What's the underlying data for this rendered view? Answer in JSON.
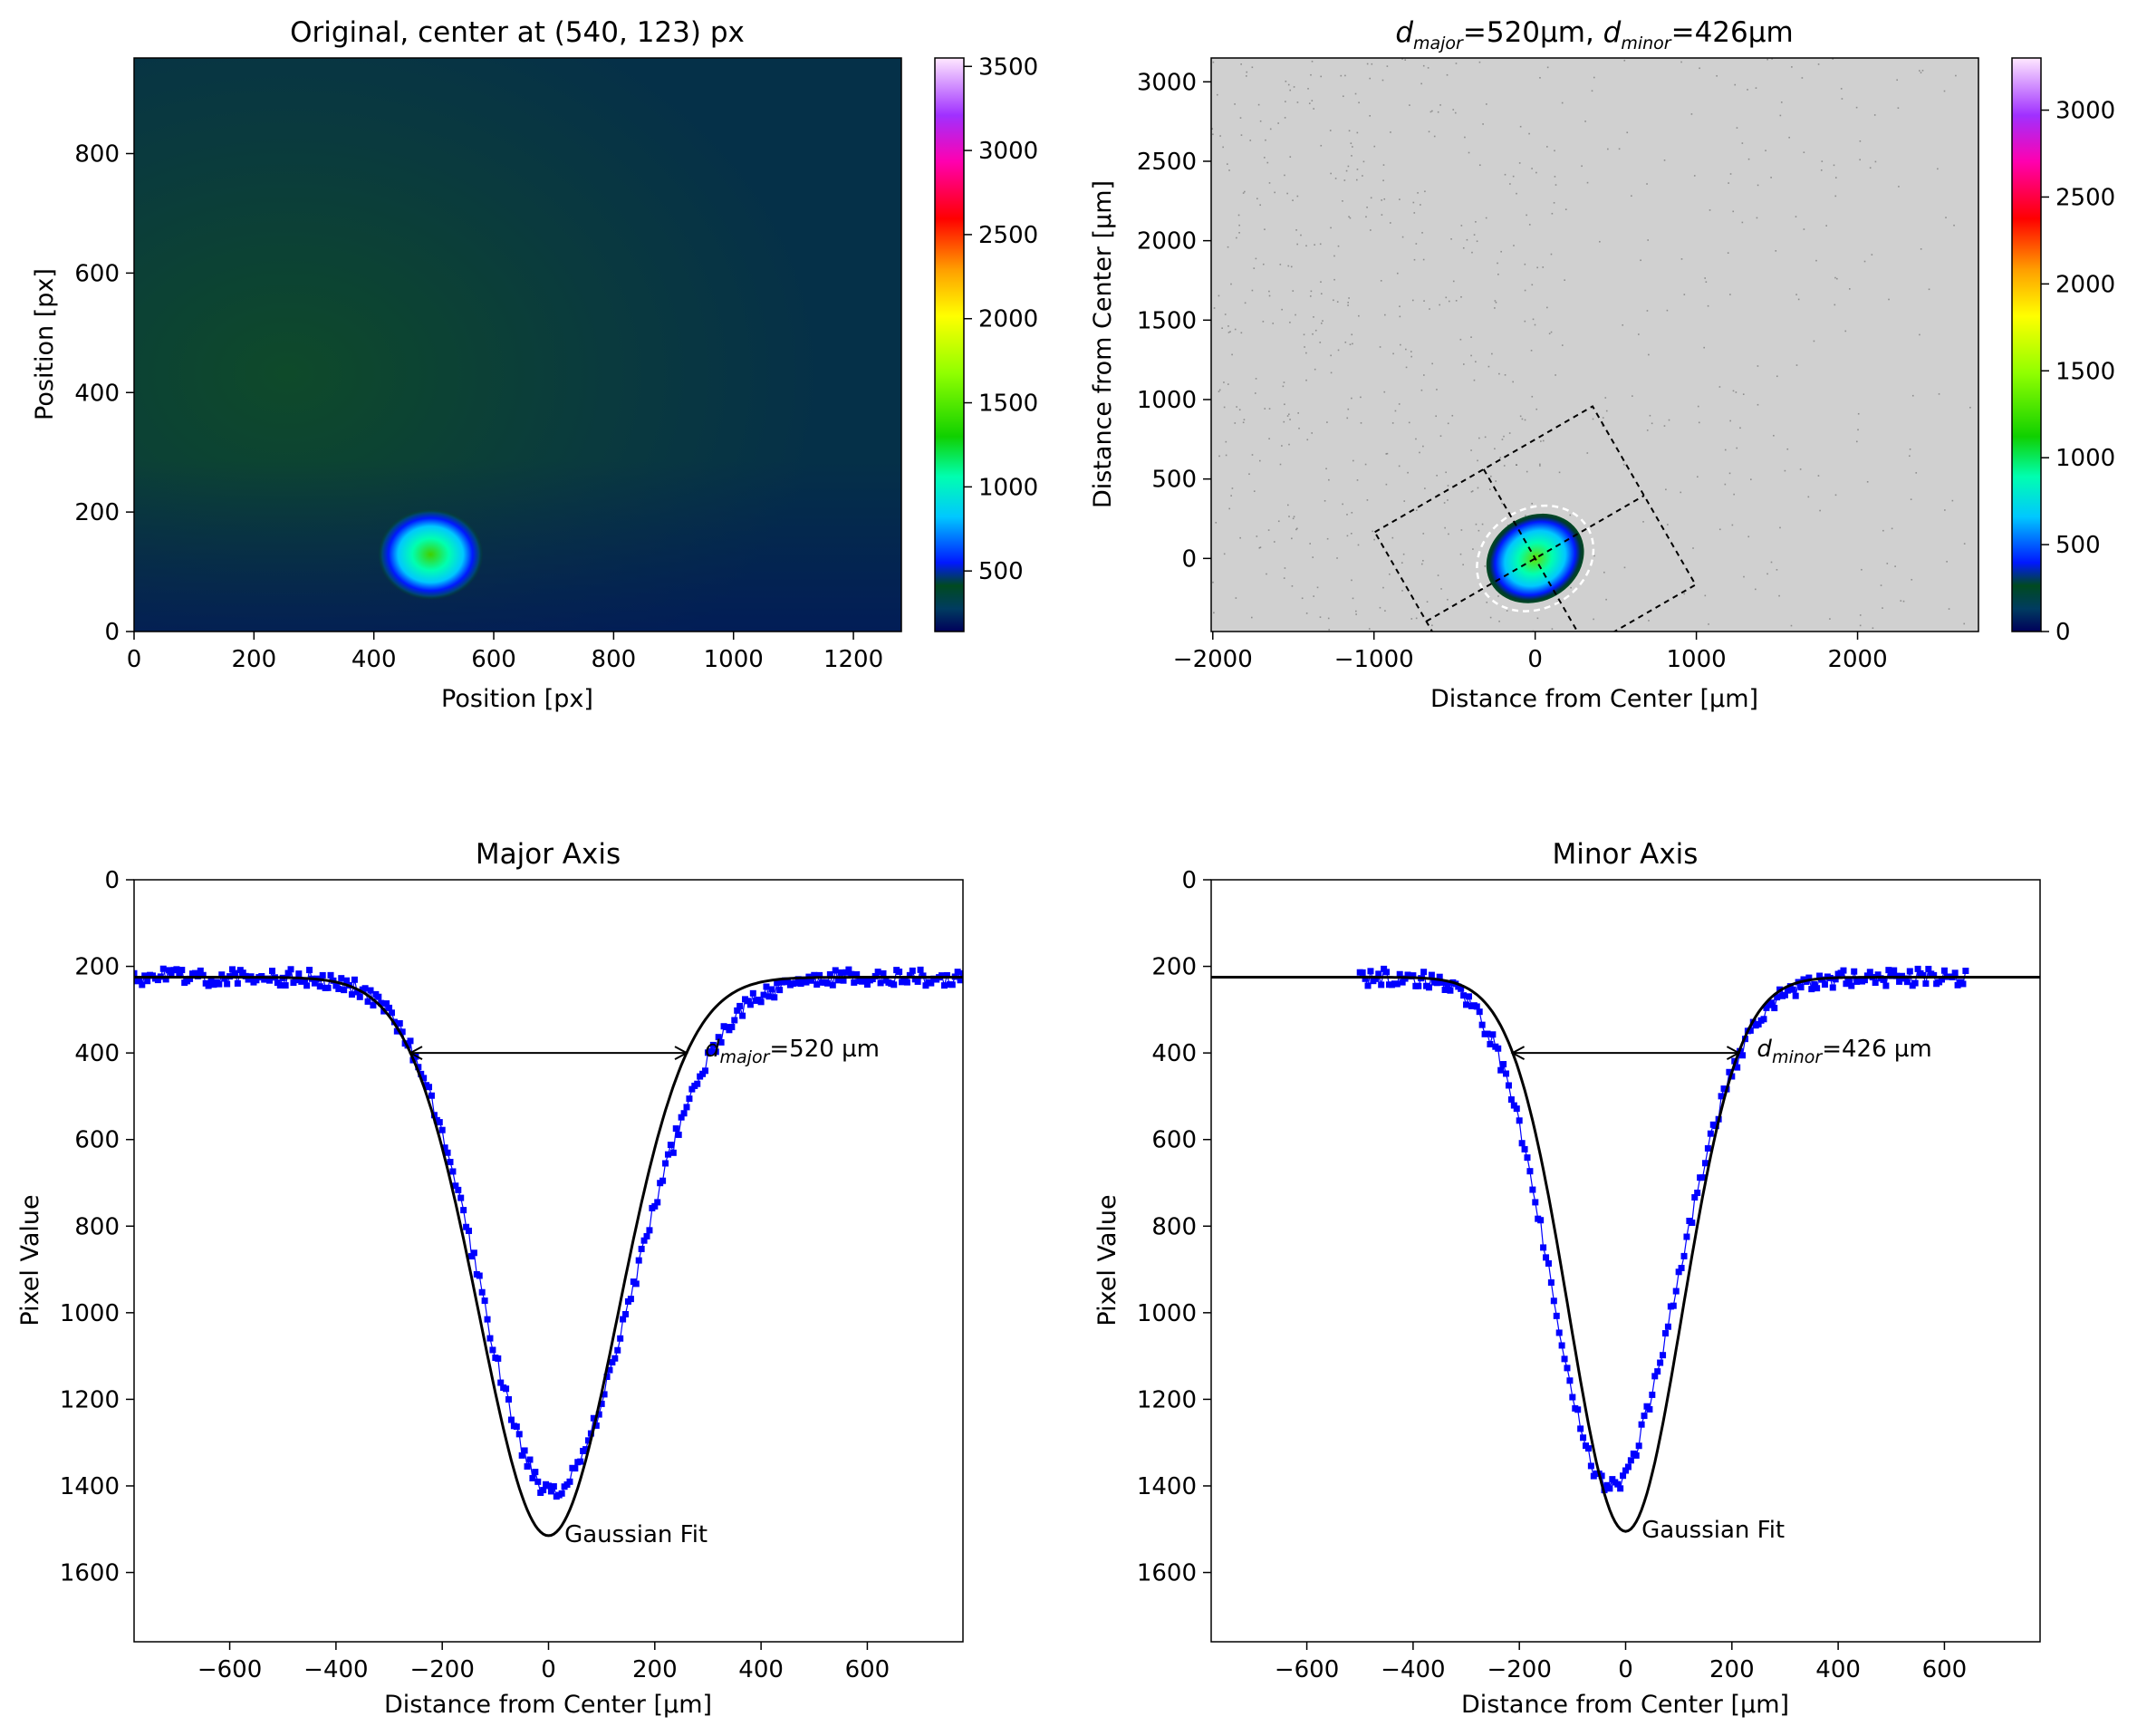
{
  "chart_data": [
    {
      "panel": "original",
      "type": "heatmap",
      "title": "Original, center at (540, 123) px",
      "xlabel": "Position [px]",
      "ylabel": "Position [px]",
      "xlim": [
        0,
        1280
      ],
      "ylim": [
        960,
        0
      ],
      "xticks": [
        0,
        200,
        400,
        600,
        800,
        1000,
        1200
      ],
      "yticks": [
        0,
        200,
        400,
        600,
        800
      ],
      "beam_center": [
        540,
        123
      ],
      "colorbar": {
        "min": 140,
        "max": 3550,
        "ticks": [
          500,
          1000,
          1500,
          2000,
          2500,
          3000,
          3500
        ]
      },
      "colormap": "gist_ncar",
      "background_color": "#0c3a3c"
    },
    {
      "panel": "centered",
      "type": "heatmap",
      "title_prefix": "d",
      "title_sub1": "major",
      "title_mid": "=520µm, ",
      "title_sub2": "minor",
      "title_suffix": "=426µm",
      "xlabel": "Distance from Center [µm]",
      "ylabel": "Distance from Center [µm]",
      "xlim": [
        -2010,
        2750
      ],
      "ylim": [
        3150,
        -460
      ],
      "xticks": [
        -2000,
        -1000,
        0,
        1000,
        2000
      ],
      "xtick_labels": [
        "−2000",
        "−1000",
        "0",
        "1000",
        "2000"
      ],
      "yticks": [
        0,
        500,
        1000,
        1500,
        2000,
        2500,
        3000
      ],
      "colorbar": {
        "min": 0,
        "max": 3300,
        "ticks": [
          0,
          500,
          1000,
          1500,
          2000,
          2500,
          3000
        ]
      },
      "background_color": "#d0d0d0",
      "rotation_deg": -30,
      "ellipse_diameters": [
        520,
        426
      ],
      "integration_rectangle": [
        1560,
        1278
      ]
    },
    {
      "panel": "major",
      "type": "line",
      "title": "Major Axis",
      "xlabel": "Distance from Center [µm]",
      "ylabel": "Pixel Value",
      "xlim": [
        -780,
        780
      ],
      "ylim": [
        0,
        1760
      ],
      "xticks": [
        -600,
        -400,
        -200,
        0,
        200,
        400,
        600
      ],
      "xtick_labels": [
        "−600",
        "−400",
        "−200",
        "0",
        "200",
        "400",
        "600"
      ],
      "yticks": [
        0,
        200,
        400,
        600,
        800,
        1000,
        1200,
        1400,
        1600
      ],
      "fit": {
        "name": "Gaussian Fit",
        "amplitude": 1290,
        "baseline": 225,
        "diameter": 520
      },
      "data_range": [
        -780,
        780
      ],
      "annotation_prefix": "d",
      "annotation_sub": "major",
      "annotation_suffix": "=520 µm",
      "arrow": {
        "x1": -260,
        "x2": 260,
        "y": 400
      },
      "series_color": "#0000ff"
    },
    {
      "panel": "minor",
      "type": "line",
      "title": "Minor Axis",
      "xlabel": "Distance from Center [µm]",
      "ylabel": "Pixel Value",
      "xlim": [
        -780,
        780
      ],
      "ylim": [
        0,
        1760
      ],
      "xticks": [
        -600,
        -400,
        -200,
        0,
        200,
        400,
        600
      ],
      "xtick_labels": [
        "−600",
        "−400",
        "−200",
        "0",
        "200",
        "400",
        "600"
      ],
      "yticks": [
        0,
        200,
        400,
        600,
        800,
        1000,
        1200,
        1400,
        1600
      ],
      "fit": {
        "name": "Gaussian Fit",
        "amplitude": 1280,
        "baseline": 225,
        "diameter": 426
      },
      "data_range": [
        -500,
        640
      ],
      "annotation_prefix": "d",
      "annotation_sub": "minor",
      "annotation_suffix": "=426 µm",
      "arrow": {
        "x1": -213,
        "x2": 213,
        "y": 400
      },
      "series_color": "#0000ff"
    }
  ]
}
